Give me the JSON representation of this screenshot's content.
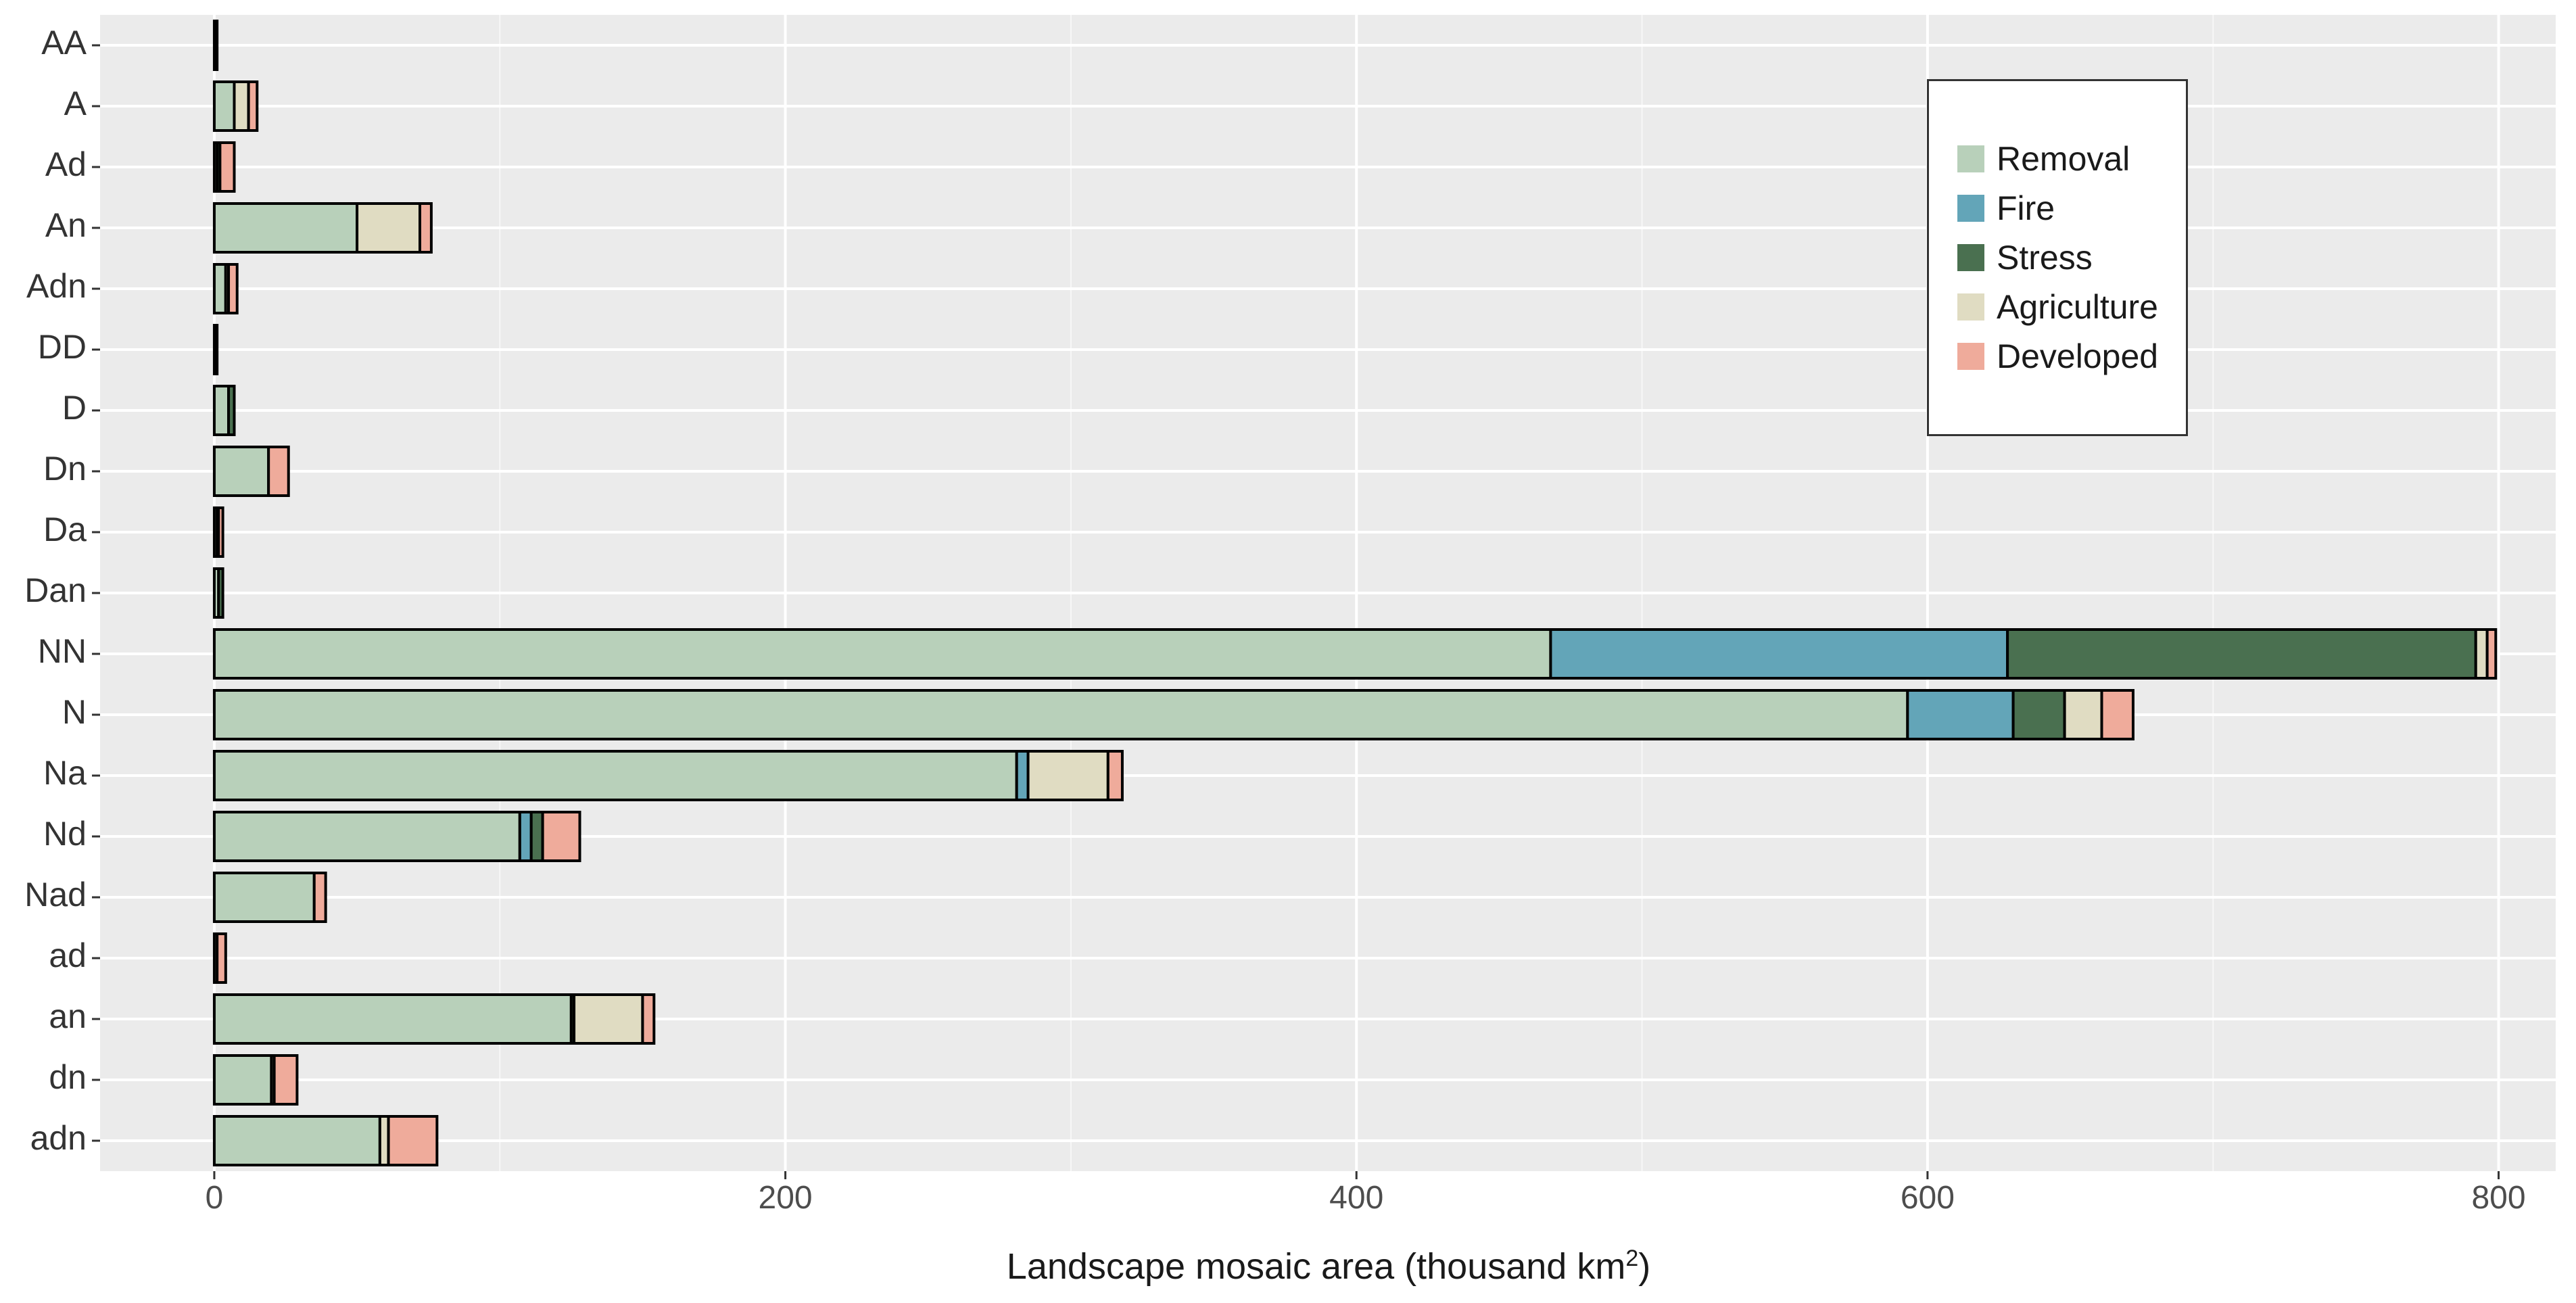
{
  "chart_data": {
    "type": "bar",
    "orientation": "horizontal",
    "stacked": true,
    "title": "",
    "xlabel": "Landscape mosaic area (thousand km",
    "xlabel_superscript": "2",
    "xlabel_suffix": ")",
    "ylabel": "",
    "xlim": [
      -40,
      820
    ],
    "x_ticks": [
      0,
      200,
      400,
      600,
      800
    ],
    "x_tick_labels": [
      "0",
      "200",
      "400",
      "600",
      "800"
    ],
    "grid": true,
    "legend_position": "top-right",
    "colors": {
      "Removal": "#b8d0ba",
      "Fire": "#63a5b8",
      "Stress": "#4a7050",
      "Agriculture": "#e0dcc2",
      "Developed": "#efab9b"
    },
    "categories": [
      "AA",
      "A",
      "Ad",
      "An",
      "Adn",
      "DD",
      "D",
      "Dn",
      "Da",
      "Dan",
      "NN",
      "N",
      "Na",
      "Nd",
      "Nad",
      "ad",
      "an",
      "dn",
      "adn"
    ],
    "series": [
      {
        "name": "Removal",
        "values": [
          0.5,
          7,
          1,
          50,
          4,
          0.5,
          5,
          19,
          1,
          1.5,
          468,
          593,
          281,
          107,
          35,
          1,
          125,
          20,
          58
        ]
      },
      {
        "name": "Fire",
        "values": [
          0,
          0,
          0,
          0,
          0,
          0,
          0,
          0,
          0,
          0,
          160,
          37,
          4,
          4,
          0,
          0,
          0,
          0,
          0
        ]
      },
      {
        "name": "Stress",
        "values": [
          0.5,
          0,
          1,
          0,
          0,
          0.5,
          2,
          0,
          0,
          1.5,
          164,
          18,
          0,
          4,
          0,
          0,
          1,
          0,
          0
        ]
      },
      {
        "name": "Agriculture",
        "values": [
          0,
          5,
          0,
          22,
          1,
          0,
          0,
          0,
          0.5,
          0,
          4,
          13,
          28,
          0,
          0,
          0,
          24,
          1,
          3
        ]
      },
      {
        "name": "Developed",
        "values": [
          0,
          3,
          5,
          4,
          3,
          0,
          0,
          7,
          1.5,
          0,
          3,
          11,
          5,
          13,
          4,
          3,
          4,
          8,
          17
        ]
      }
    ]
  },
  "legend": {
    "items": [
      {
        "label": "Removal",
        "color": "#b8d0ba"
      },
      {
        "label": "Fire",
        "color": "#63a5b8"
      },
      {
        "label": "Stress",
        "color": "#4a7050"
      },
      {
        "label": "Agriculture",
        "color": "#e0dcc2"
      },
      {
        "label": "Developed",
        "color": "#efab9b"
      }
    ]
  }
}
